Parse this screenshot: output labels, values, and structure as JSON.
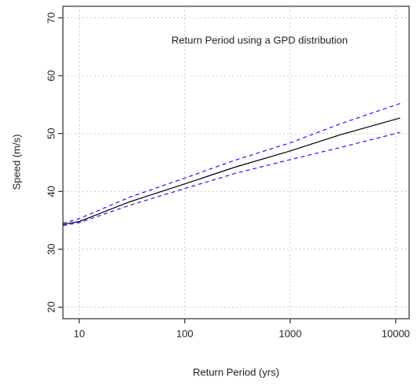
{
  "chart_data": {
    "type": "line",
    "annotation": "Return Period using a GPD distribution",
    "x_label": "Return Period (yrs)",
    "y_label": "Speed (m/s)",
    "x": [
      7,
      10,
      30,
      100,
      300,
      1000,
      3000,
      11000
    ],
    "series": [
      {
        "color": "#000000",
        "dash": false,
        "values": [
          34.3,
          34.8,
          38.2,
          41.3,
          44.2,
          47.0,
          49.8,
          52.7
        ]
      },
      {
        "color": "#1a1aff",
        "dash": true,
        "values": [
          34.5,
          35.3,
          39.0,
          42.3,
          45.4,
          48.4,
          51.7,
          55.2
        ]
      },
      {
        "color": "#1a1aff",
        "dash": true,
        "values": [
          34.1,
          34.6,
          37.6,
          40.5,
          43.1,
          45.5,
          47.6,
          50.2
        ]
      }
    ],
    "xlog": true,
    "xlim": [
      7,
      13400
    ],
    "xticks": [
      10,
      100,
      1000,
      10000
    ],
    "ylim": [
      18,
      72
    ],
    "yticks": [
      20,
      30,
      40,
      50,
      60,
      70
    ],
    "grid": true
  }
}
